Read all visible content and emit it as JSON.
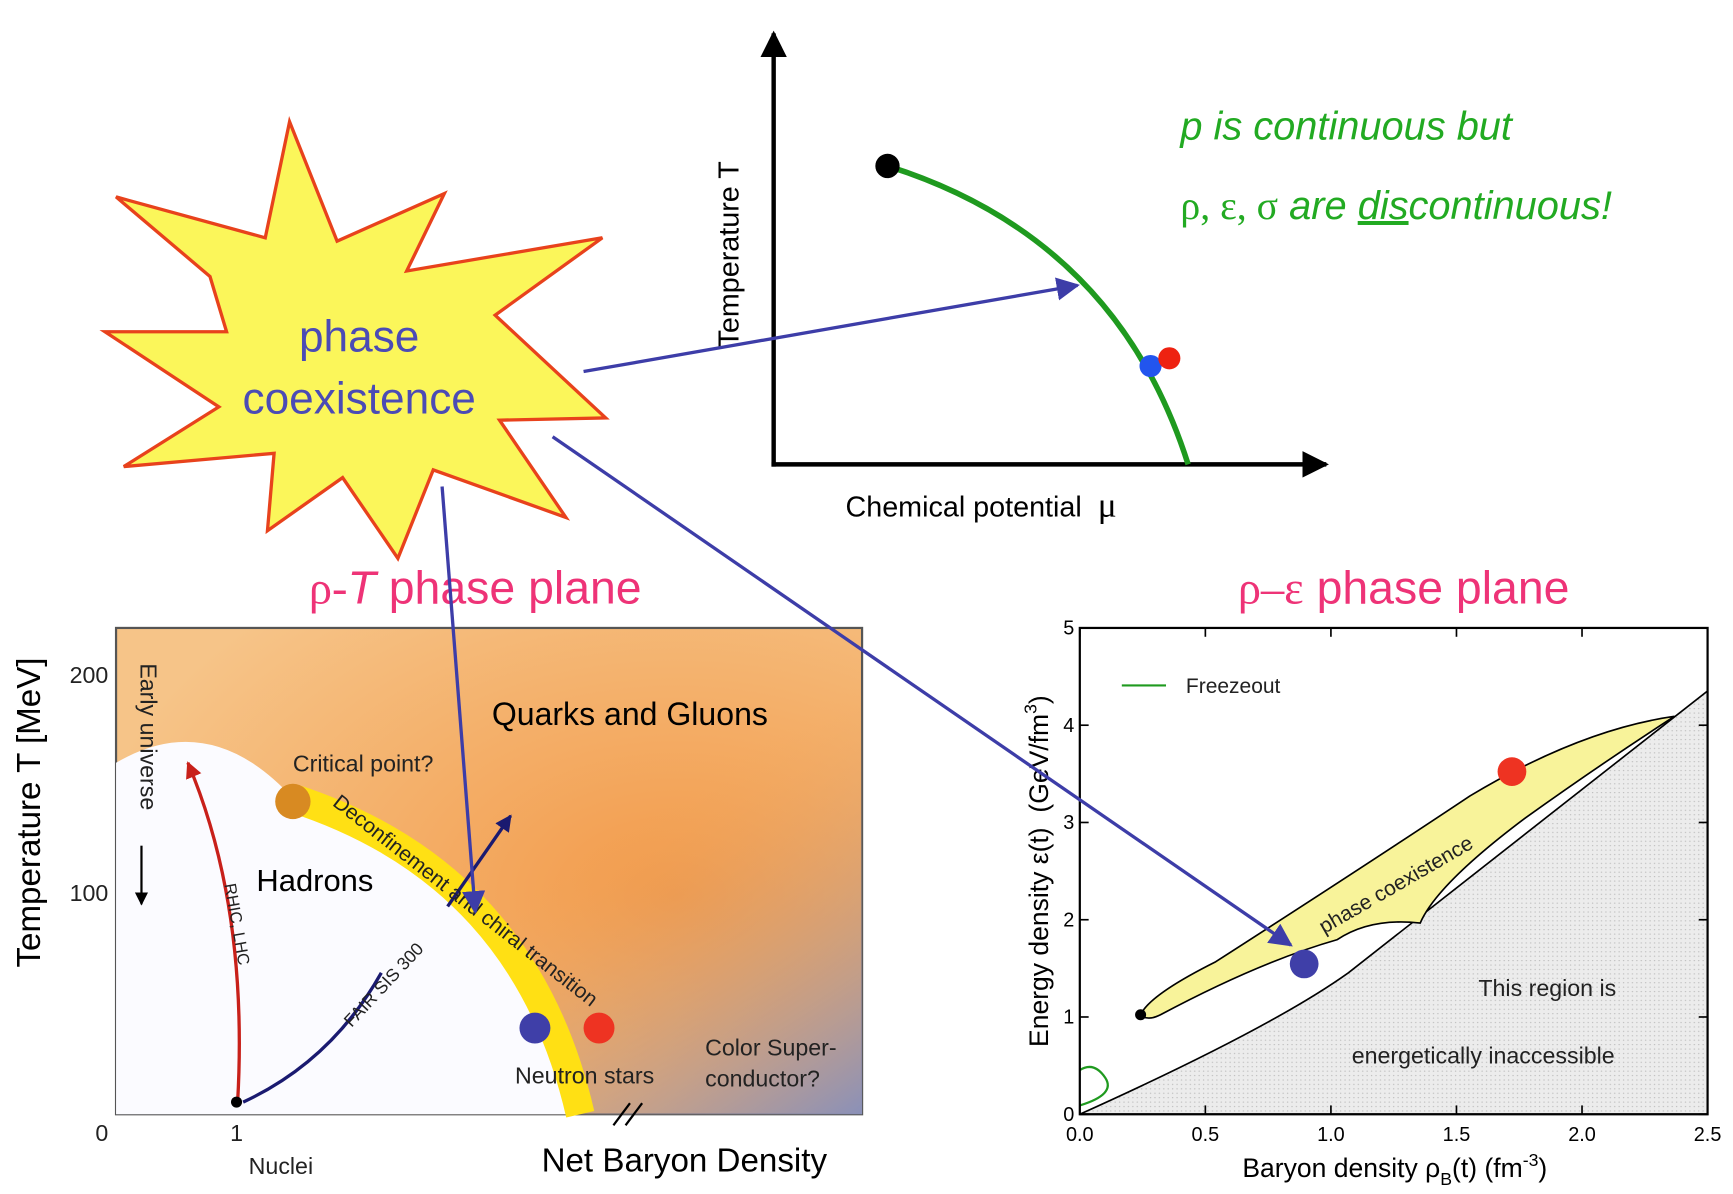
{
  "starburst": {
    "lines": [
      "phase",
      "coexistence"
    ]
  },
  "top_diagram": {
    "y_axis_label": "Temperature T",
    "x_axis_label": "Chemical potential  ",
    "x_axis_symbol": "μ"
  },
  "note": {
    "line1": "p is continuous but",
    "line2": {
      "symbols": "ρ, ε, σ",
      "before": " are ",
      "underlined": "dis",
      "after": "continuous!"
    }
  },
  "rho_t_plane": {
    "title": {
      "symbol": "ρ-",
      "italic": "T",
      "rest": " phase plane"
    },
    "y_axis_label": "Temperature T [MeV]",
    "y_ticks": [
      "200",
      "100",
      "0"
    ],
    "x_tick": "1",
    "x_tick_label": "Nuclei",
    "x_axis_label": "Net Baryon Density",
    "labels": {
      "early_universe": "Early universe",
      "rhic": "RHIC, LHC",
      "hadrons": "Hadrons",
      "critical_point": "Critical point?",
      "quarks": "Quarks and Gluons",
      "transition": "Deconfinement and chiral transition",
      "fair": "FAIR SIS 300",
      "neutron_stars": "Neutron stars",
      "color_super_1": "Color Super-",
      "color_super_2": "conductor?"
    }
  },
  "rho_eps_plane": {
    "title": {
      "symbols": "ρ–ε",
      "rest": " phase plane"
    },
    "y_axis_label": {
      "text": "Energy density ε(t)  (GeV/fm",
      "sup": "3",
      "end": ")"
    },
    "x_axis_label": {
      "text": "Baryon density ρ",
      "sub": "B",
      "mid": "(t) (fm",
      "sup": "-3",
      "end": ")"
    },
    "y_ticks": [
      "0",
      "1",
      "2",
      "3",
      "4",
      "5"
    ],
    "x_ticks": [
      "0.0",
      "0.5",
      "1.0",
      "1.5",
      "2.0",
      "2.5"
    ],
    "legend": "Freezeout",
    "region_label": "phase coexistence",
    "inaccessible": [
      "This region is",
      "energetically inaccessible"
    ]
  }
}
